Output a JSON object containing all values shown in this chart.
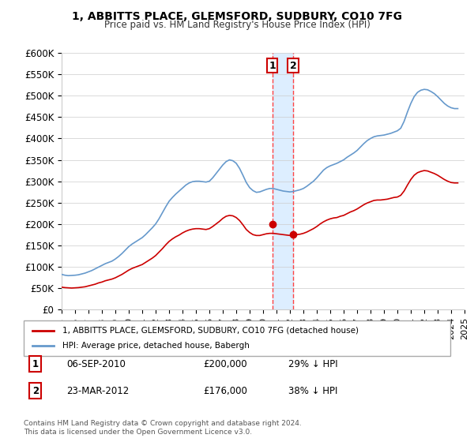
{
  "title": "1, ABBITTS PLACE, GLEMSFORD, SUDBURY, CO10 7FG",
  "subtitle": "Price paid vs. HM Land Registry's House Price Index (HPI)",
  "ylabel_ticks": [
    "£0",
    "£50K",
    "£100K",
    "£150K",
    "£200K",
    "£250K",
    "£300K",
    "£350K",
    "£400K",
    "£450K",
    "£500K",
    "£550K",
    "£600K"
  ],
  "ytick_values": [
    0,
    50000,
    100000,
    150000,
    200000,
    250000,
    300000,
    350000,
    400000,
    450000,
    500000,
    550000,
    600000
  ],
  "legend_label_red": "1, ABBITTS PLACE, GLEMSFORD, SUDBURY, CO10 7FG (detached house)",
  "legend_label_blue": "HPI: Average price, detached house, Babergh",
  "footnote": "Contains HM Land Registry data © Crown copyright and database right 2024.\nThis data is licensed under the Open Government Licence v3.0.",
  "annotation1_label": "1",
  "annotation1_date": "06-SEP-2010",
  "annotation1_price": "£200,000",
  "annotation1_hpi": "29% ↓ HPI",
  "annotation2_label": "2",
  "annotation2_date": "23-MAR-2012",
  "annotation2_price": "£176,000",
  "annotation2_hpi": "38% ↓ HPI",
  "color_red": "#cc0000",
  "color_blue": "#6699cc",
  "color_vline": "#ff4444",
  "color_highlight": "#ddeeff",
  "xmin": 1995,
  "xmax": 2025,
  "ymin": 0,
  "ymax": 600000,
  "sale1_x": 2010.68,
  "sale2_x": 2012.23,
  "hpi_years": [
    1995.0,
    1995.25,
    1995.5,
    1995.75,
    1996.0,
    1996.25,
    1996.5,
    1996.75,
    1997.0,
    1997.25,
    1997.5,
    1997.75,
    1998.0,
    1998.25,
    1998.5,
    1998.75,
    1999.0,
    1999.25,
    1999.5,
    1999.75,
    2000.0,
    2000.25,
    2000.5,
    2000.75,
    2001.0,
    2001.25,
    2001.5,
    2001.75,
    2002.0,
    2002.25,
    2002.5,
    2002.75,
    2003.0,
    2003.25,
    2003.5,
    2003.75,
    2004.0,
    2004.25,
    2004.5,
    2004.75,
    2005.0,
    2005.25,
    2005.5,
    2005.75,
    2006.0,
    2006.25,
    2006.5,
    2006.75,
    2007.0,
    2007.25,
    2007.5,
    2007.75,
    2008.0,
    2008.25,
    2008.5,
    2008.75,
    2009.0,
    2009.25,
    2009.5,
    2009.75,
    2010.0,
    2010.25,
    2010.5,
    2010.75,
    2011.0,
    2011.25,
    2011.5,
    2011.75,
    2012.0,
    2012.25,
    2012.5,
    2012.75,
    2013.0,
    2013.25,
    2013.5,
    2013.75,
    2014.0,
    2014.25,
    2014.5,
    2014.75,
    2015.0,
    2015.25,
    2015.5,
    2015.75,
    2016.0,
    2016.25,
    2016.5,
    2016.75,
    2017.0,
    2017.25,
    2017.5,
    2017.75,
    2018.0,
    2018.25,
    2018.5,
    2018.75,
    2019.0,
    2019.25,
    2019.5,
    2019.75,
    2020.0,
    2020.25,
    2020.5,
    2020.75,
    2021.0,
    2021.25,
    2021.5,
    2021.75,
    2022.0,
    2022.25,
    2022.5,
    2022.75,
    2023.0,
    2023.25,
    2023.5,
    2023.75,
    2024.0,
    2024.25,
    2024.5
  ],
  "hpi_values": [
    82000,
    80000,
    79000,
    79500,
    80000,
    81000,
    83000,
    85000,
    88000,
    91000,
    95000,
    99000,
    103000,
    107000,
    110000,
    113000,
    118000,
    124000,
    131000,
    139000,
    147000,
    153000,
    158000,
    163000,
    168000,
    175000,
    183000,
    191000,
    200000,
    212000,
    226000,
    240000,
    253000,
    262000,
    270000,
    277000,
    284000,
    291000,
    296000,
    299000,
    300000,
    300000,
    299000,
    298000,
    300000,
    308000,
    318000,
    328000,
    338000,
    346000,
    350000,
    348000,
    342000,
    330000,
    314000,
    297000,
    285000,
    278000,
    274000,
    275000,
    278000,
    281000,
    283000,
    283000,
    281000,
    279000,
    277000,
    276000,
    275000,
    276000,
    278000,
    280000,
    283000,
    288000,
    294000,
    300000,
    308000,
    317000,
    326000,
    332000,
    336000,
    339000,
    342000,
    346000,
    350000,
    356000,
    361000,
    366000,
    372000,
    380000,
    388000,
    395000,
    400000,
    404000,
    406000,
    407000,
    408000,
    410000,
    412000,
    415000,
    418000,
    424000,
    440000,
    462000,
    482000,
    498000,
    508000,
    513000,
    515000,
    514000,
    510000,
    505000,
    498000,
    490000,
    482000,
    476000,
    472000,
    470000,
    470000
  ],
  "red_years": [
    1995.0,
    1995.25,
    1995.5,
    1995.75,
    1996.0,
    1996.25,
    1996.5,
    1996.75,
    1997.0,
    1997.25,
    1997.5,
    1997.75,
    1998.0,
    1998.25,
    1998.5,
    1998.75,
    1999.0,
    1999.25,
    1999.5,
    1999.75,
    2000.0,
    2000.25,
    2000.5,
    2000.75,
    2001.0,
    2001.25,
    2001.5,
    2001.75,
    2002.0,
    2002.25,
    2002.5,
    2002.75,
    2003.0,
    2003.25,
    2003.5,
    2003.75,
    2004.0,
    2004.25,
    2004.5,
    2004.75,
    2005.0,
    2005.25,
    2005.5,
    2005.75,
    2006.0,
    2006.25,
    2006.5,
    2006.75,
    2007.0,
    2007.25,
    2007.5,
    2007.75,
    2008.0,
    2008.25,
    2008.5,
    2008.75,
    2009.0,
    2009.25,
    2009.5,
    2009.75,
    2010.0,
    2010.25,
    2010.5,
    2010.75,
    2011.0,
    2011.25,
    2011.5,
    2011.75,
    2012.0,
    2012.25,
    2012.5,
    2012.75,
    2013.0,
    2013.25,
    2013.5,
    2013.75,
    2014.0,
    2014.25,
    2014.5,
    2014.75,
    2015.0,
    2015.25,
    2015.5,
    2015.75,
    2016.0,
    2016.25,
    2016.5,
    2016.75,
    2017.0,
    2017.25,
    2017.5,
    2017.75,
    2018.0,
    2018.25,
    2018.5,
    2018.75,
    2019.0,
    2019.25,
    2019.5,
    2019.75,
    2020.0,
    2020.25,
    2020.5,
    2020.75,
    2021.0,
    2021.25,
    2021.5,
    2021.75,
    2022.0,
    2022.25,
    2022.5,
    2022.75,
    2023.0,
    2023.25,
    2023.5,
    2023.75,
    2024.0,
    2024.25,
    2024.5
  ],
  "red_values": [
    52000,
    51000,
    50500,
    50000,
    50500,
    51000,
    52000,
    53000,
    55000,
    57000,
    59000,
    62000,
    64000,
    67000,
    69000,
    71000,
    74000,
    78000,
    82000,
    87000,
    92000,
    96000,
    99000,
    102000,
    105000,
    110000,
    115000,
    120000,
    126000,
    134000,
    142000,
    151000,
    159000,
    165000,
    170000,
    174000,
    179000,
    183000,
    186000,
    188000,
    189000,
    189000,
    188000,
    187000,
    189000,
    194000,
    200000,
    206000,
    213000,
    218000,
    220000,
    219000,
    215000,
    208000,
    198000,
    187000,
    180000,
    175000,
    173000,
    173000,
    175000,
    177000,
    178000,
    178000,
    177000,
    176000,
    175000,
    174000,
    173000,
    174000,
    175000,
    176000,
    178000,
    181000,
    185000,
    189000,
    194000,
    200000,
    205000,
    209000,
    212000,
    214000,
    215000,
    218000,
    220000,
    224000,
    228000,
    231000,
    235000,
    240000,
    245000,
    249000,
    252000,
    255000,
    256000,
    256000,
    257000,
    258000,
    260000,
    262000,
    263000,
    267000,
    277000,
    291000,
    304000,
    314000,
    320000,
    323000,
    325000,
    324000,
    321000,
    318000,
    314000,
    309000,
    304000,
    300000,
    297000,
    296000,
    296000
  ]
}
